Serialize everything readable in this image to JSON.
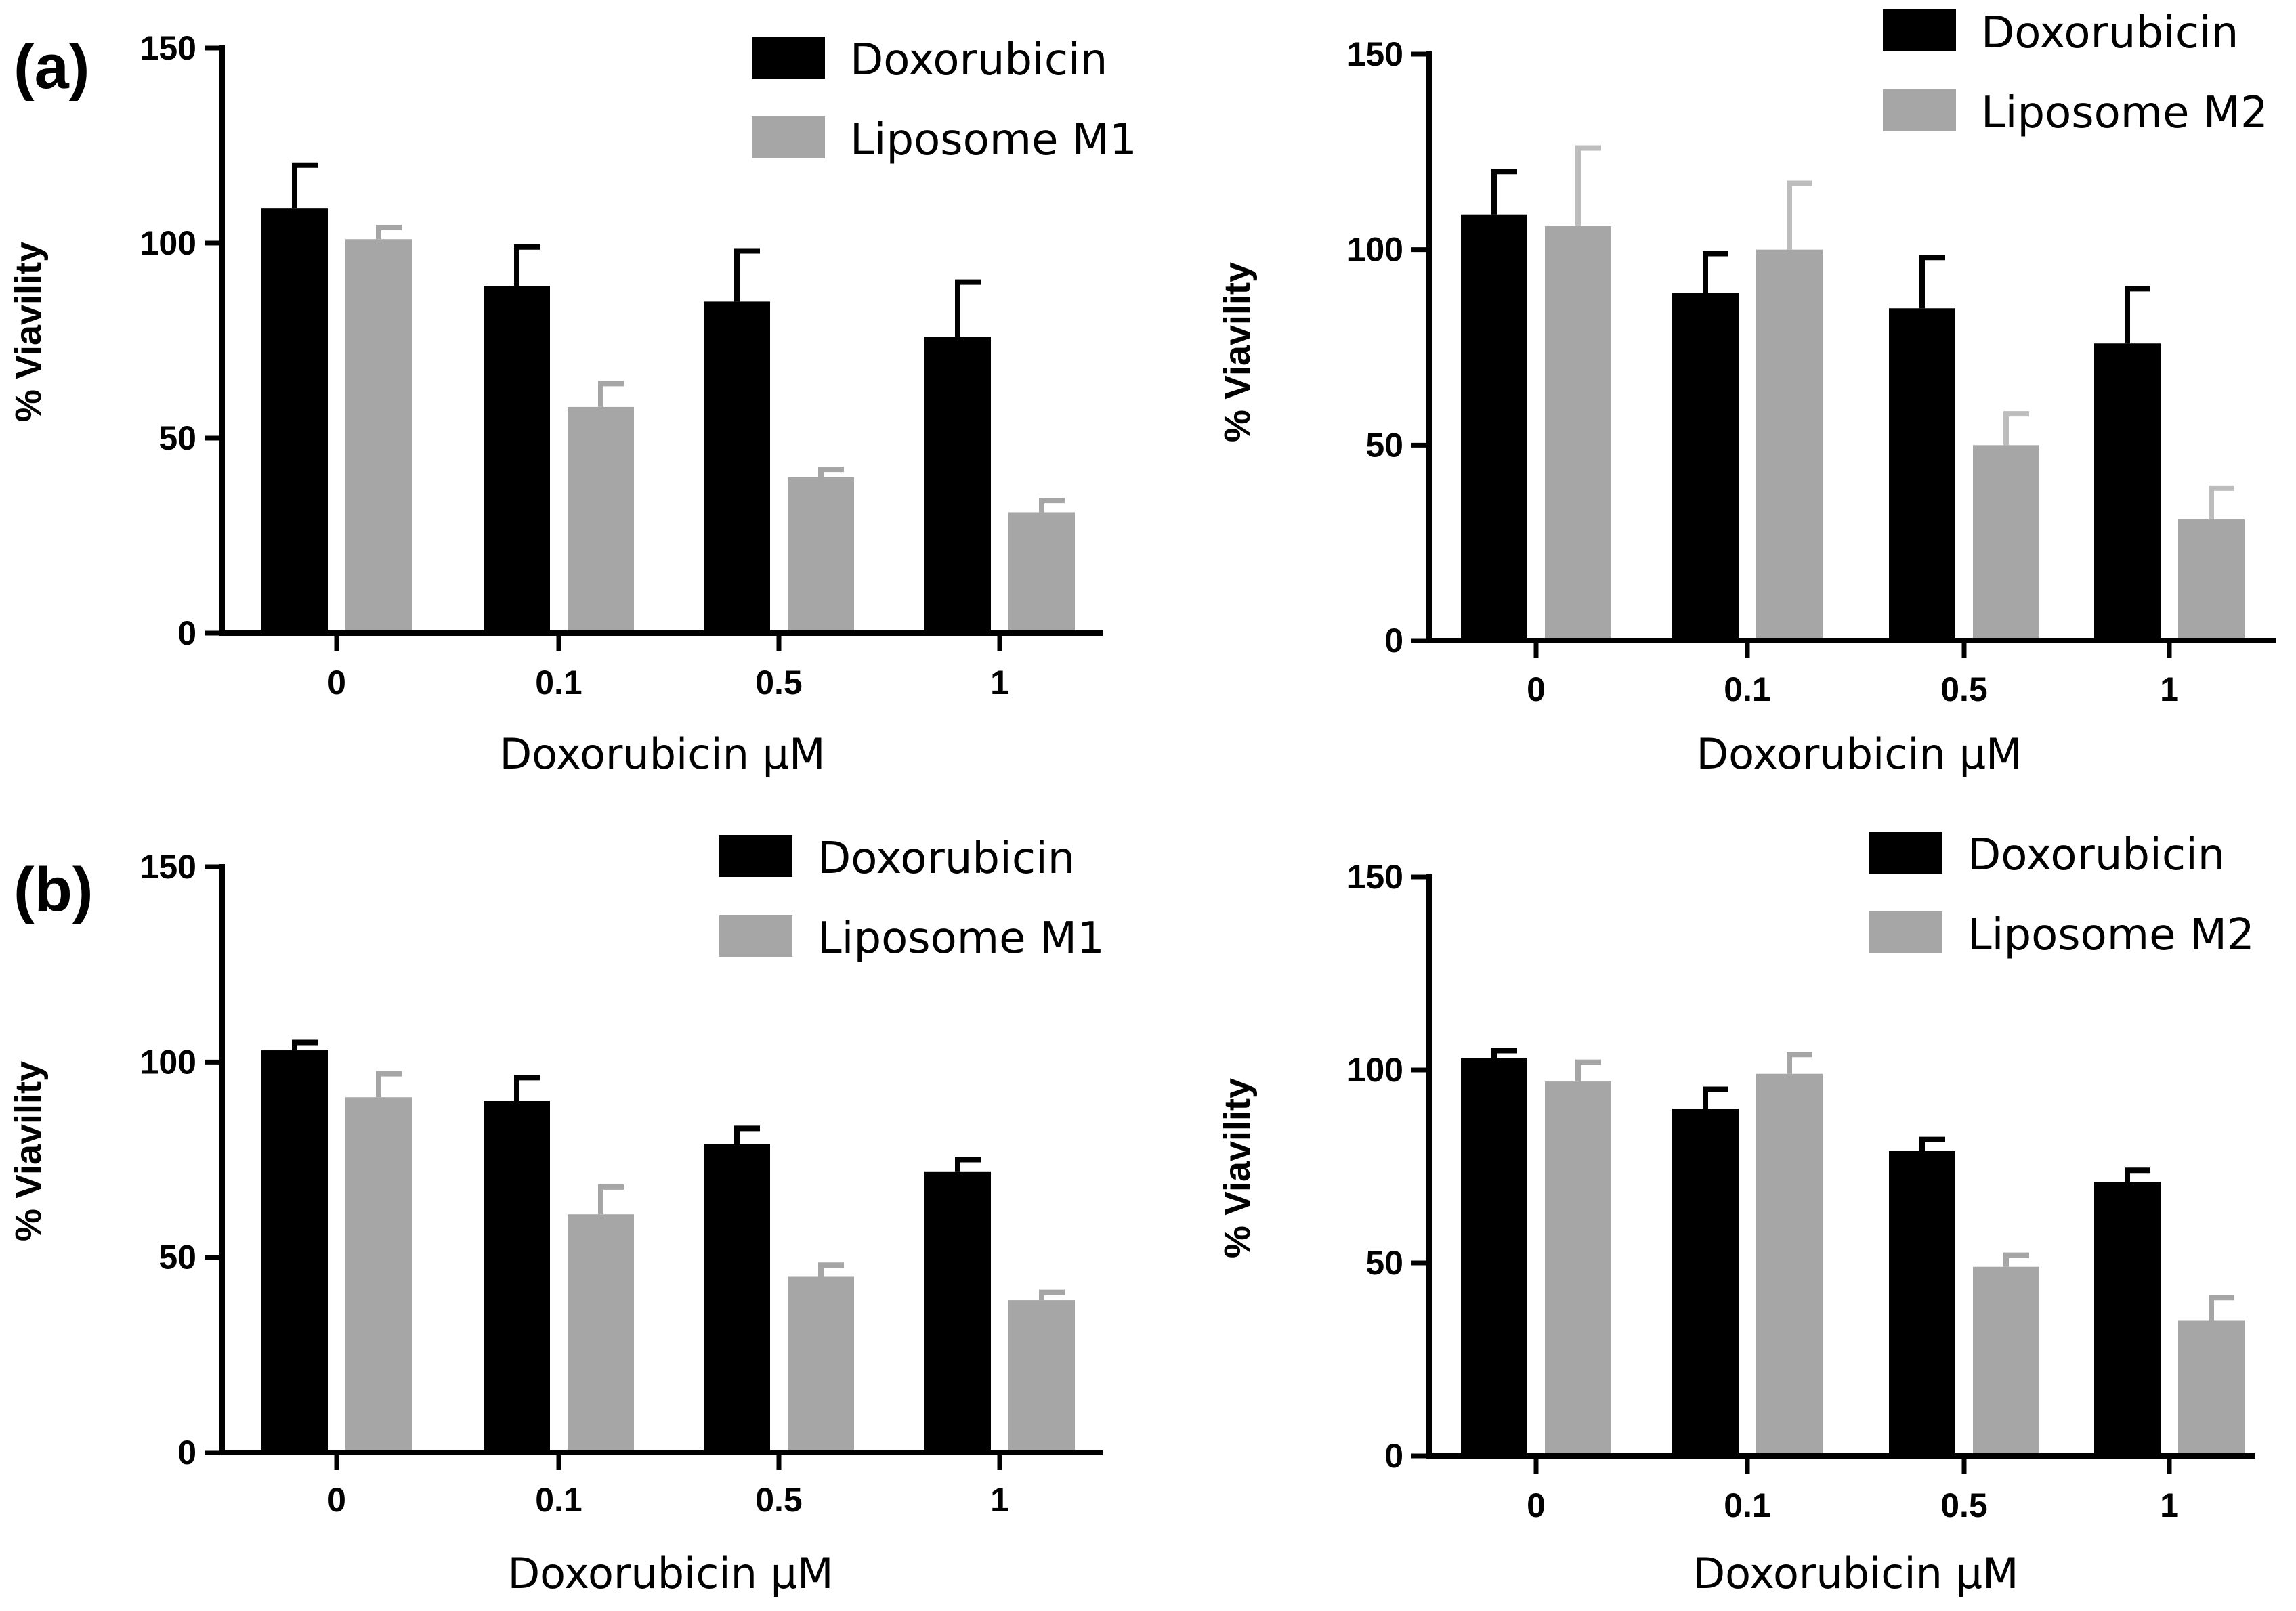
{
  "figure": {
    "panel_labels": [
      "(a)",
      "(b)"
    ]
  },
  "colors": {
    "doxorubicin": "#000000",
    "liposome": "#a6a6a6",
    "errorbar_light": "#bdbdbd",
    "axis": "#000000"
  },
  "chart_data": [
    {
      "id": "a-left",
      "type": "bar",
      "panel_label": "(a)",
      "categories": [
        "0",
        "0.1",
        "0.5",
        "1"
      ],
      "series": [
        {
          "name": "Doxorubicin",
          "values": [
            109,
            89,
            85,
            76
          ],
          "errors": [
            11,
            10,
            13,
            14
          ]
        },
        {
          "name": "Liposome M1",
          "values": [
            101,
            58,
            40,
            31
          ],
          "errors": [
            3,
            6,
            2,
            3
          ]
        }
      ],
      "xlabel": "Doxorubicin μM",
      "ylabel": "% Viavility",
      "ylim": [
        0,
        150
      ],
      "yticks": [
        0,
        50,
        100,
        150
      ],
      "legend": "top-right"
    },
    {
      "id": "a-right",
      "type": "bar",
      "panel_label": "",
      "categories": [
        "0",
        "0.1",
        "0.5",
        "1"
      ],
      "series": [
        {
          "name": "Doxorubicin",
          "values": [
            109,
            89,
            85,
            76
          ],
          "errors": [
            11,
            10,
            13,
            14
          ]
        },
        {
          "name": "Liposome M2",
          "values": [
            106,
            100,
            50,
            31
          ],
          "errors": [
            20,
            17,
            8,
            8
          ]
        }
      ],
      "xlabel": "Doxorubicin μM",
      "ylabel": "% Viavility",
      "ylim": [
        0,
        150
      ],
      "yticks": [
        0,
        50,
        100,
        150
      ],
      "legend": "top-right"
    },
    {
      "id": "b-left",
      "type": "bar",
      "panel_label": "(b)",
      "categories": [
        "0",
        "0.1",
        "0.5",
        "1"
      ],
      "series": [
        {
          "name": "Doxorubicin",
          "values": [
            103,
            90,
            79,
            72
          ],
          "errors": [
            2,
            6,
            4,
            3
          ]
        },
        {
          "name": "Liposome M1",
          "values": [
            91,
            61,
            45,
            39
          ],
          "errors": [
            6,
            7,
            3,
            2
          ]
        }
      ],
      "xlabel": "Doxorubicin μM",
      "ylabel": "% Viavility",
      "ylim": [
        0,
        150
      ],
      "yticks": [
        0,
        50,
        100,
        150
      ],
      "legend": "top-right"
    },
    {
      "id": "b-right",
      "type": "bar",
      "panel_label": "",
      "categories": [
        "0",
        "0.1",
        "0.5",
        "1"
      ],
      "series": [
        {
          "name": "Doxorubicin",
          "values": [
            103,
            90,
            79,
            71
          ],
          "errors": [
            2,
            5,
            3,
            3
          ]
        },
        {
          "name": "Liposome M2",
          "values": [
            97,
            99,
            49,
            35
          ],
          "errors": [
            5,
            5,
            3,
            6
          ]
        }
      ],
      "xlabel": "Doxorubicin μM",
      "ylabel": "% Viavility",
      "ylim": [
        0,
        150
      ],
      "yticks": [
        0,
        50,
        100,
        150
      ],
      "legend": "top-right"
    }
  ]
}
